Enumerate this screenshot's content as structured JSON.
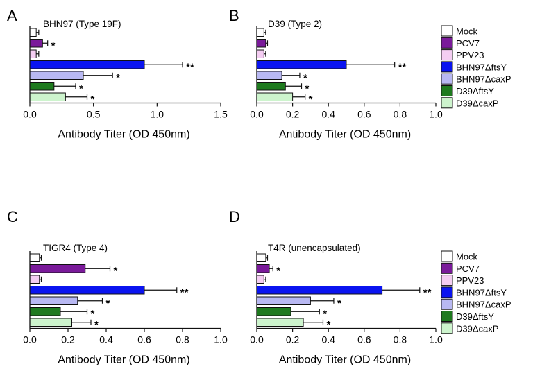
{
  "chart_data": {
    "type": "bar",
    "orientation": "horizontal",
    "categories": [
      "Mock",
      "PCV7",
      "PPV23",
      "BHN97ΔftsY",
      "BHN97ΔcaxP",
      "D39ΔftsY",
      "D39ΔcaxP"
    ],
    "colors": [
      "#ffffff",
      "#7a1a9a",
      "#f4cdf2",
      "#0a14f0",
      "#b8b8f2",
      "#1e7a1e",
      "#cdf4cd"
    ],
    "legend": {
      "placement": "right",
      "entries": [
        "Mock",
        "PCV7",
        "PPV23",
        "BHN97ΔftsY",
        "BHN97ΔcaxP",
        "D39ΔftsY",
        "D39ΔcaxP"
      ]
    },
    "panels": [
      {
        "label": "A",
        "title": "BHN97 (Type 19F)",
        "xlabel": "Antibody Titer (OD 450nm)",
        "xlim": [
          0,
          1.5
        ],
        "ticks": [
          "0.0",
          "0.5",
          "1.0",
          "1.5"
        ],
        "tick_values": [
          0,
          0.5,
          1.0,
          1.5
        ],
        "values": [
          0.05,
          0.1,
          0.05,
          0.9,
          0.42,
          0.19,
          0.28
        ],
        "errors": [
          0.02,
          0.04,
          0.02,
          0.3,
          0.23,
          0.17,
          0.17
        ],
        "significance": [
          "",
          "*",
          "",
          "**",
          "*",
          "*",
          "*"
        ]
      },
      {
        "label": "B",
        "title": "D39 (Type 2)",
        "xlabel": "Antibody Titer (OD 450nm)",
        "xlim": [
          0,
          1.0
        ],
        "ticks": [
          "0.0",
          "0.2",
          "0.4",
          "0.6",
          "0.8",
          "1.0"
        ],
        "tick_values": [
          0,
          0.2,
          0.4,
          0.6,
          0.8,
          1.0
        ],
        "values": [
          0.04,
          0.05,
          0.04,
          0.5,
          0.14,
          0.16,
          0.2
        ],
        "errors": [
          0.01,
          0.01,
          0.01,
          0.27,
          0.1,
          0.09,
          0.07
        ],
        "significance": [
          "",
          "",
          "",
          "**",
          "*",
          "*",
          "*"
        ]
      },
      {
        "label": "C",
        "title": "TIGR4 (Type 4)",
        "xlabel": "Antibody Titer (OD 450nm)",
        "xlim": [
          0,
          1.0
        ],
        "ticks": [
          "0.0",
          "0.2",
          "0.4",
          "0.6",
          "0.8",
          "1.0"
        ],
        "tick_values": [
          0,
          0.2,
          0.4,
          0.6,
          0.8,
          1.0
        ],
        "values": [
          0.05,
          0.29,
          0.05,
          0.6,
          0.25,
          0.16,
          0.22
        ],
        "errors": [
          0.01,
          0.13,
          0.01,
          0.17,
          0.13,
          0.14,
          0.1
        ],
        "significance": [
          "",
          "*",
          "",
          "**",
          "*",
          "*",
          "*"
        ]
      },
      {
        "label": "D",
        "title": "T4R (unencapsulated)",
        "xlabel": "Antibody Titer (OD 450nm)",
        "xlim": [
          0,
          1.0
        ],
        "ticks": [
          "0.0",
          "0.2",
          "0.4",
          "0.6",
          "0.8",
          "1.0"
        ],
        "tick_values": [
          0,
          0.2,
          0.4,
          0.6,
          0.8,
          1.0
        ],
        "values": [
          0.05,
          0.07,
          0.04,
          0.7,
          0.3,
          0.19,
          0.26
        ],
        "errors": [
          0.01,
          0.02,
          0.01,
          0.21,
          0.13,
          0.16,
          0.11
        ],
        "significance": [
          "",
          "*",
          "",
          "**",
          "*",
          "*",
          "*"
        ]
      }
    ]
  }
}
